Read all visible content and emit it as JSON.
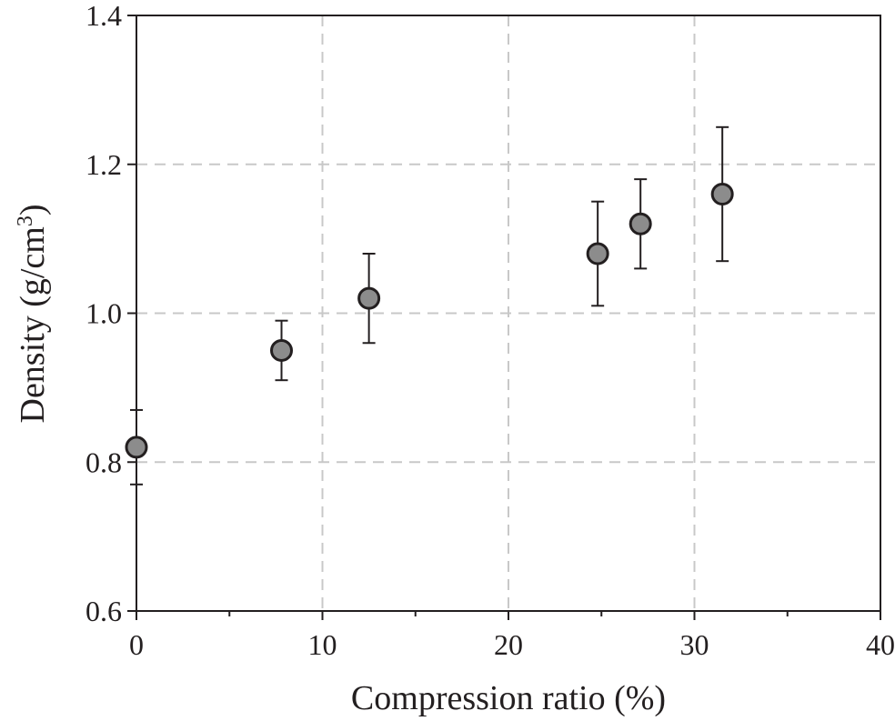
{
  "chart_data": {
    "type": "scatter",
    "title": "",
    "xlabel": "Compression ratio (%)",
    "ylabel_main": "Density (g/cm",
    "ylabel_sup": "3",
    "ylabel_tail": ")",
    "xlim": [
      0,
      40
    ],
    "ylim": [
      0.6,
      1.4
    ],
    "x_ticks": [
      0,
      10,
      20,
      30,
      40
    ],
    "x_tick_labels": [
      "0",
      "10",
      "20",
      "30",
      "40"
    ],
    "x_minor_ticks": [
      5,
      15,
      25,
      35
    ],
    "y_ticks": [
      0.6,
      0.8,
      1.0,
      1.2,
      1.4
    ],
    "y_tick_labels": [
      "0.6",
      "0.8",
      "1.0",
      "1.2",
      "1.4"
    ],
    "grid": true,
    "legend": "none",
    "marker_fill": "#8c8c8c",
    "marker_edge": "#231f20",
    "series": [
      {
        "name": "Density",
        "points": [
          {
            "x": 0.0,
            "y": 0.82,
            "err_low": 0.77,
            "err_high": 0.87
          },
          {
            "x": 7.8,
            "y": 0.95,
            "err_low": 0.91,
            "err_high": 0.99
          },
          {
            "x": 12.5,
            "y": 1.02,
            "err_low": 0.96,
            "err_high": 1.08
          },
          {
            "x": 24.8,
            "y": 1.08,
            "err_low": 1.01,
            "err_high": 1.15
          },
          {
            "x": 27.1,
            "y": 1.12,
            "err_low": 1.06,
            "err_high": 1.18
          },
          {
            "x": 31.5,
            "y": 1.16,
            "err_low": 1.07,
            "err_high": 1.25
          }
        ]
      }
    ]
  }
}
